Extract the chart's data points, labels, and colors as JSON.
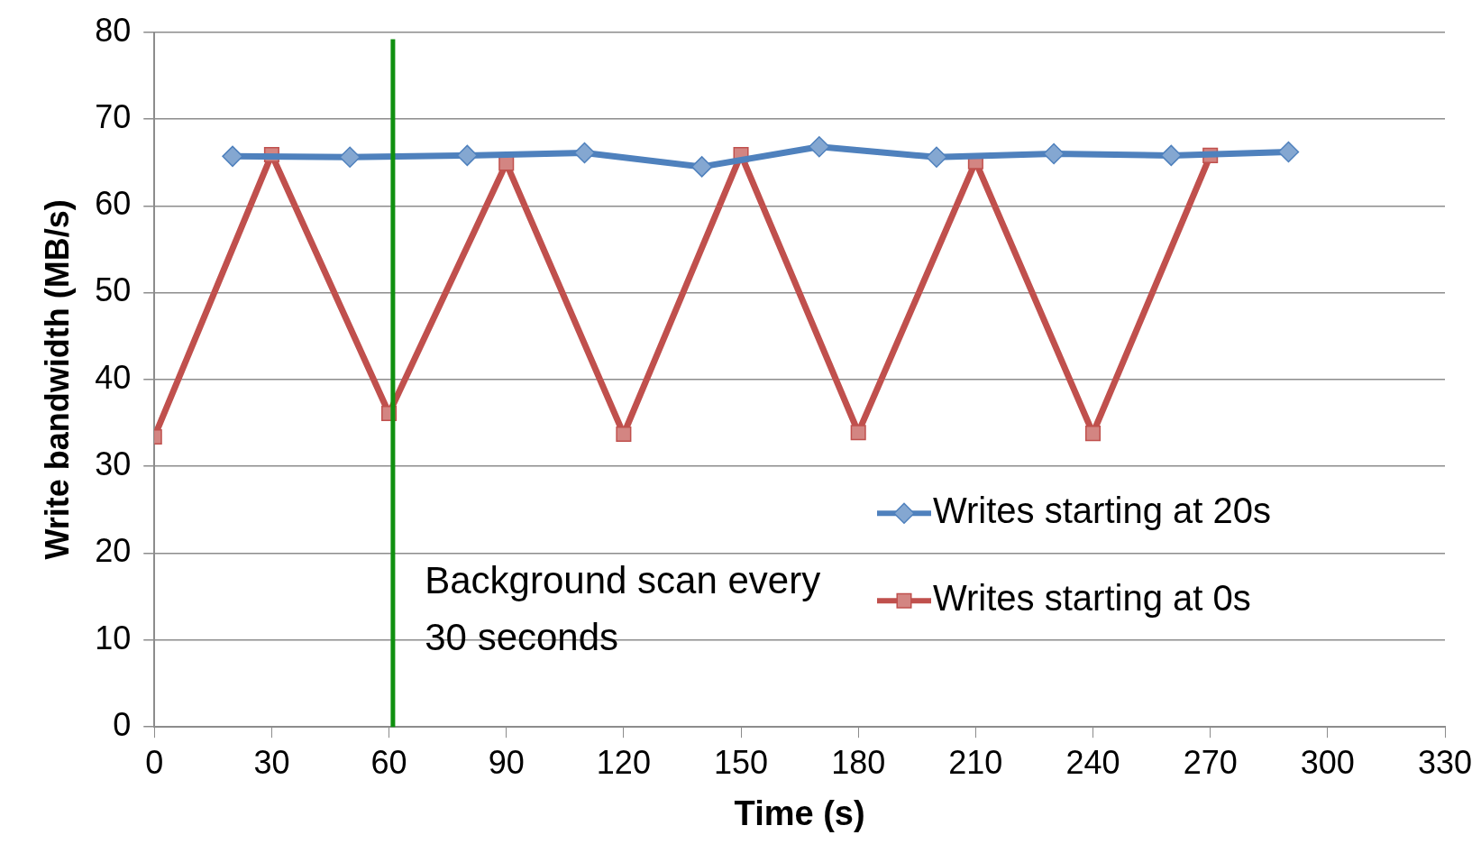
{
  "chart_data": {
    "type": "line",
    "xlabel": "Time (s)",
    "ylabel": "Write bandwidth (MB/s)",
    "xlim": [
      0,
      330
    ],
    "xticks": [
      0,
      30,
      60,
      90,
      120,
      150,
      180,
      210,
      240,
      270,
      300,
      330
    ],
    "ylim": [
      0,
      80
    ],
    "yticks": [
      0,
      10,
      20,
      30,
      40,
      50,
      60,
      70,
      80
    ],
    "grid": "y",
    "legend": "bottom right",
    "series": [
      {
        "name": "Writes starting at 20s",
        "color": "#4f81bd",
        "marker": "diamond",
        "x": [
          20,
          50,
          80,
          110,
          140,
          170,
          200,
          230,
          260,
          290
        ],
        "values": [
          65.7,
          65.6,
          65.8,
          66.1,
          64.5,
          66.8,
          65.6,
          66.0,
          65.8,
          66.2
        ]
      },
      {
        "name": "Writes starting at 0s",
        "color": "#c0504d",
        "marker": "square",
        "x": [
          0,
          30,
          60,
          90,
          120,
          150,
          180,
          210,
          240,
          270
        ],
        "values": [
          33.4,
          65.9,
          36.1,
          64.9,
          33.7,
          65.9,
          33.9,
          65.1,
          33.8,
          65.8
        ]
      }
    ],
    "ref_lines": [
      {
        "axis": "x",
        "value": 61,
        "color": "#109010"
      }
    ],
    "annotations": [
      "Background scan every 30 seconds"
    ]
  }
}
